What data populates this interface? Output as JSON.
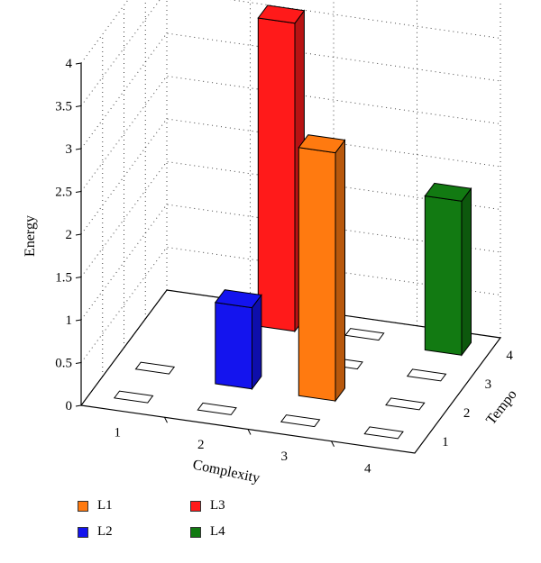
{
  "chart_data": {
    "type": "bar3d",
    "zlabel": "Energy",
    "xlabel": "Complexity",
    "ylabel": "Tempo",
    "x_categories": [
      "1",
      "2",
      "3",
      "4"
    ],
    "y_categories": [
      "1",
      "2",
      "3",
      "4"
    ],
    "zlim": [
      0,
      4
    ],
    "z_ticks": [
      "0",
      "0.5",
      "1",
      "1.5",
      "2",
      "2.5",
      "3",
      "3.5",
      "4"
    ],
    "grid": true,
    "legend_position": "bottom-left",
    "series": [
      {
        "name": "L1",
        "color": "#ff7a10",
        "points": [
          {
            "x": "3",
            "y": "2",
            "value": 2.9
          }
        ]
      },
      {
        "name": "L2",
        "color": "#1414ee",
        "points": [
          {
            "x": "2",
            "y": "2",
            "value": 0.95
          }
        ]
      },
      {
        "name": "L3",
        "color": "#ff1a1a",
        "points": [
          {
            "x": "2",
            "y": "4",
            "value": 3.6
          }
        ]
      },
      {
        "name": "L4",
        "color": "#127a12",
        "points": [
          {
            "x": "4",
            "y": "4",
            "value": 1.8
          }
        ]
      }
    ],
    "empty_cells": [
      {
        "x": "1",
        "y": "1"
      },
      {
        "x": "1",
        "y": "2"
      },
      {
        "x": "2",
        "y": "1"
      },
      {
        "x": "3",
        "y": "1"
      },
      {
        "x": "4",
        "y": "1"
      },
      {
        "x": "3",
        "y": "3"
      },
      {
        "x": "4",
        "y": "2"
      },
      {
        "x": "4",
        "y": "3"
      },
      {
        "x": "3",
        "y": "4"
      }
    ]
  }
}
